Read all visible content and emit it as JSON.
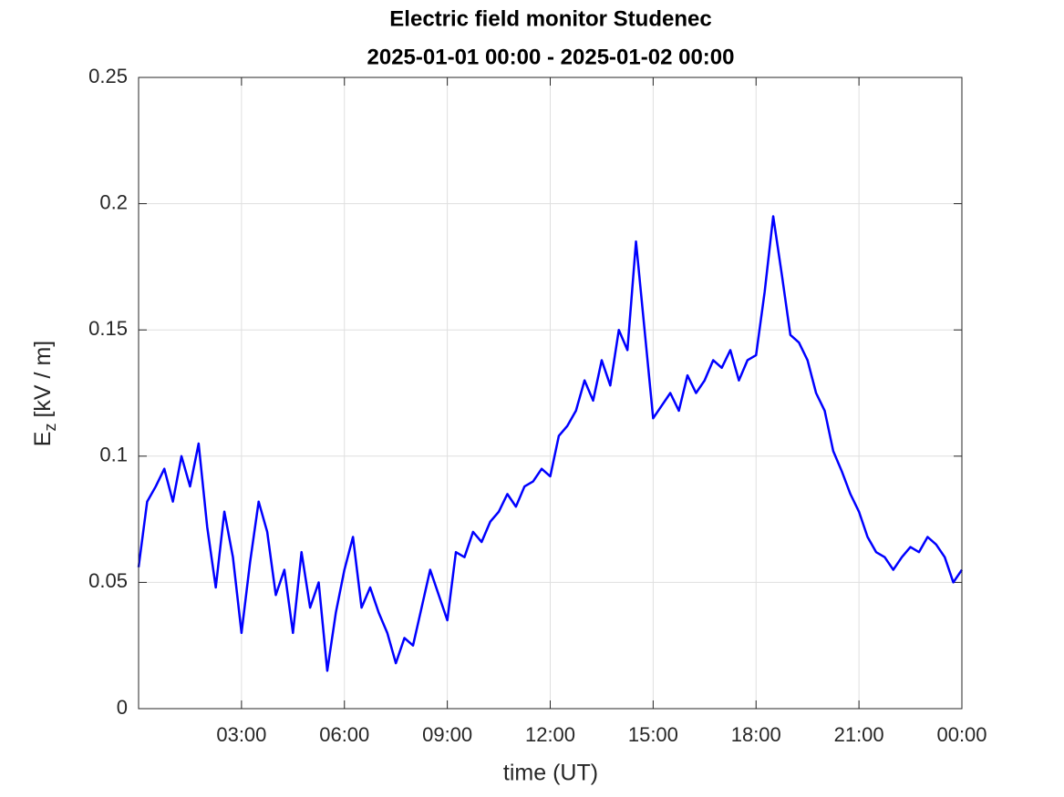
{
  "chart_data": {
    "type": "line",
    "title": "Electric field monitor Studenec",
    "subtitle": "2025-01-01 00:00 - 2025-01-02 00:00",
    "xlabel": "time (UT)",
    "ylabel": "E",
    "ylabel_sub": "z",
    "ylabel_unit": "[kV / m]",
    "x": [
      0,
      0.25,
      0.5,
      0.75,
      1,
      1.25,
      1.5,
      1.75,
      2,
      2.25,
      2.5,
      2.75,
      3,
      3.25,
      3.5,
      3.75,
      4,
      4.25,
      4.5,
      4.75,
      5,
      5.25,
      5.5,
      5.75,
      6,
      6.25,
      6.5,
      6.75,
      7,
      7.25,
      7.5,
      7.75,
      8,
      8.25,
      8.5,
      8.75,
      9,
      9.25,
      9.5,
      9.75,
      10,
      10.25,
      10.5,
      10.75,
      11,
      11.25,
      11.5,
      11.75,
      12,
      12.25,
      12.5,
      12.75,
      13,
      13.25,
      13.5,
      13.75,
      14,
      14.25,
      14.5,
      14.75,
      15,
      15.25,
      15.5,
      15.75,
      16,
      16.25,
      16.5,
      16.75,
      17,
      17.25,
      17.5,
      17.75,
      18,
      18.25,
      18.5,
      18.75,
      19,
      19.25,
      19.5,
      19.75,
      20,
      20.25,
      20.5,
      20.75,
      21,
      21.25,
      21.5,
      21.75,
      22,
      22.25,
      22.5,
      22.75,
      23,
      23.25,
      23.5,
      23.75,
      24
    ],
    "values": [
      0.056,
      0.082,
      0.088,
      0.095,
      0.082,
      0.1,
      0.088,
      0.105,
      0.072,
      0.048,
      0.078,
      0.06,
      0.03,
      0.058,
      0.082,
      0.07,
      0.045,
      0.055,
      0.03,
      0.062,
      0.04,
      0.05,
      0.015,
      0.038,
      0.055,
      0.068,
      0.04,
      0.048,
      0.038,
      0.03,
      0.018,
      0.028,
      0.025,
      0.04,
      0.055,
      0.045,
      0.035,
      0.062,
      0.06,
      0.07,
      0.066,
      0.074,
      0.078,
      0.085,
      0.08,
      0.088,
      0.09,
      0.095,
      0.092,
      0.108,
      0.112,
      0.118,
      0.13,
      0.122,
      0.138,
      0.128,
      0.15,
      0.142,
      0.185,
      0.15,
      0.115,
      0.12,
      0.125,
      0.118,
      0.132,
      0.125,
      0.13,
      0.138,
      0.135,
      0.142,
      0.13,
      0.138,
      0.14,
      0.165,
      0.195,
      0.172,
      0.148,
      0.145,
      0.138,
      0.125,
      0.118,
      0.102,
      0.094,
      0.085,
      0.078,
      0.068,
      0.062,
      0.06,
      0.055,
      0.06,
      0.064,
      0.062,
      0.068,
      0.065,
      0.06,
      0.05,
      0.055
    ],
    "color": "#0000ff",
    "xlim": [
      0,
      24
    ],
    "xticks": [
      {
        "value": 3,
        "label": "03:00"
      },
      {
        "value": 6,
        "label": "06:00"
      },
      {
        "value": 9,
        "label": "09:00"
      },
      {
        "value": 12,
        "label": "12:00"
      },
      {
        "value": 15,
        "label": "15:00"
      },
      {
        "value": 18,
        "label": "18:00"
      },
      {
        "value": 21,
        "label": "21:00"
      },
      {
        "value": 24,
        "label": "00:00"
      }
    ],
    "ylim": [
      0,
      0.25
    ],
    "yticks": [
      0,
      0.05,
      0.1,
      0.15,
      0.2,
      0.25
    ],
    "grid": true
  }
}
